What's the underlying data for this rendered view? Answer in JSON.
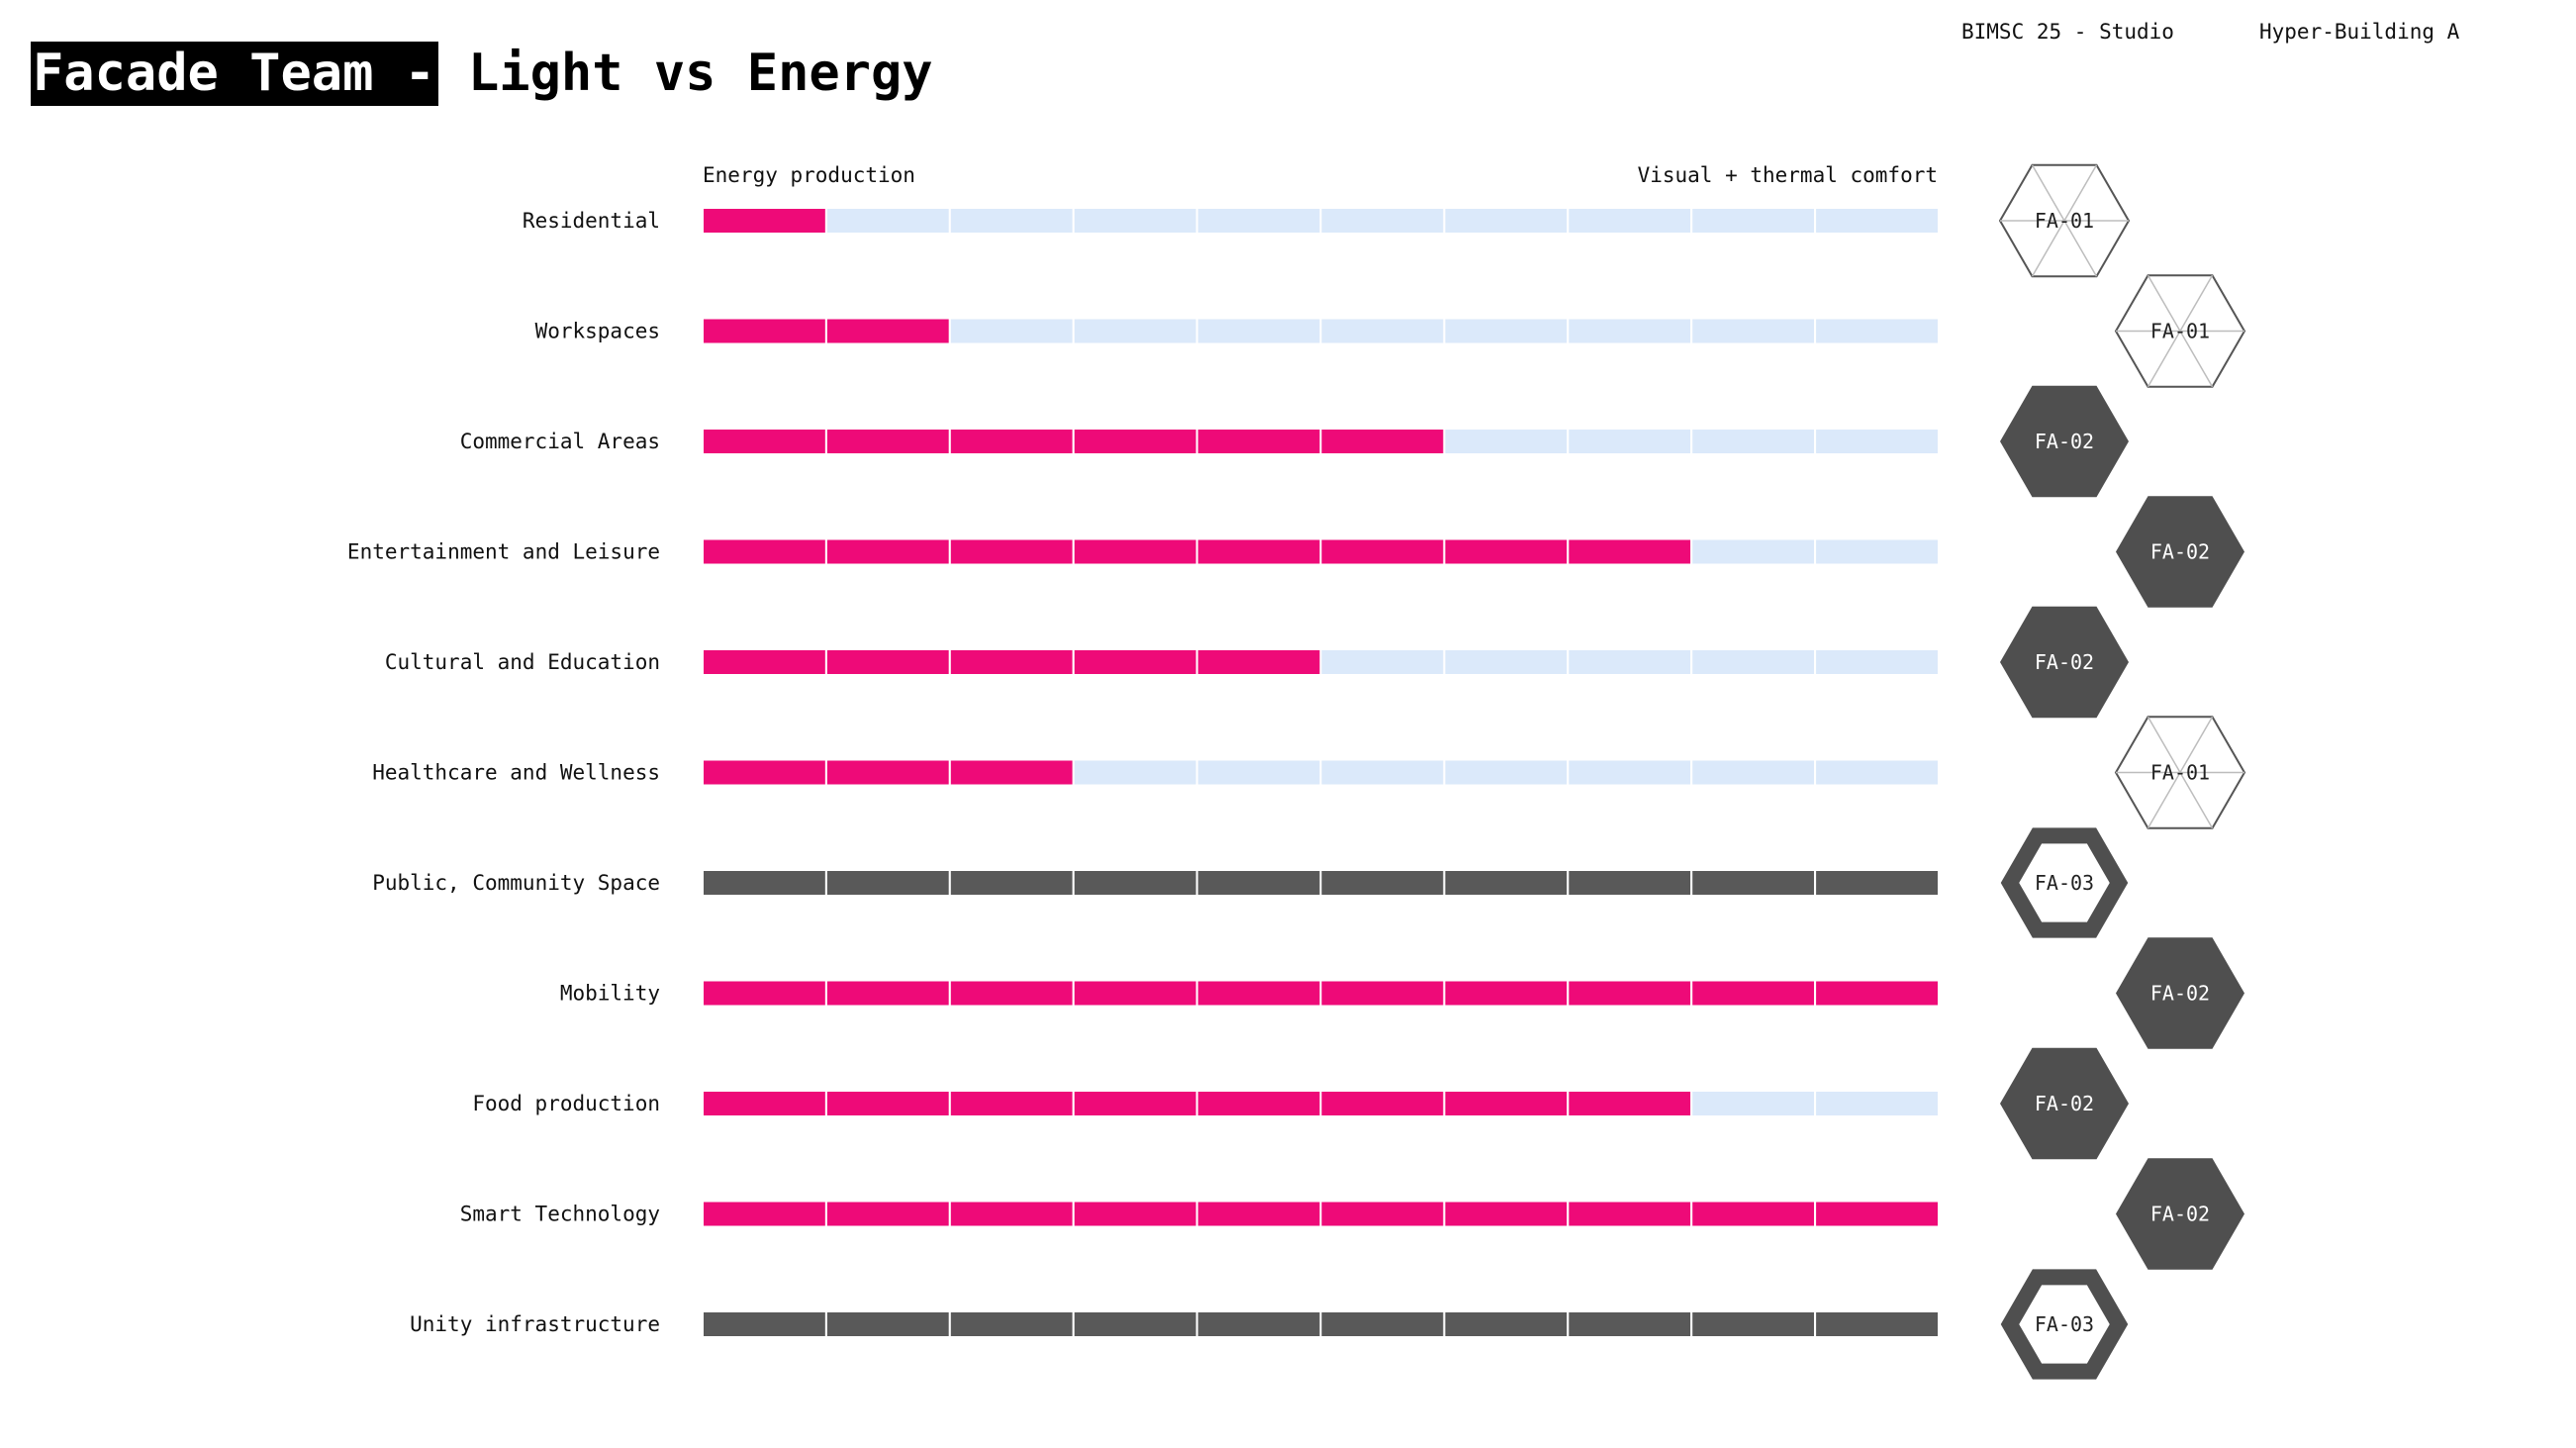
{
  "header": {
    "title_dark": "Facade Team -",
    "title_light": "Light vs Energy",
    "course": "BIMSC 25 - Studio",
    "project": "Hyper-Building A"
  },
  "colors": {
    "energy": "#ee0a78",
    "comfort": "#dbe9fa",
    "neutral": "#595959",
    "hex_dark": "#4f4f4f",
    "hex_outline": "#555555"
  },
  "chart_data": {
    "type": "bar",
    "orientation": "horizontal",
    "stacked": true,
    "scale_left_label": "Energy production",
    "scale_right_label": "Visual + thermal comfort",
    "segments_total": 10,
    "xlim": [
      0,
      10
    ],
    "categories": [
      "Residential",
      "Workspaces",
      "Commercial Areas",
      "Entertainment and Leisure",
      "Cultural and Education",
      "Healthcare and Wellness",
      "Public, Community Space",
      "Mobility",
      "Food production",
      "Smart Technology",
      "Unity infrastructure"
    ],
    "values": [
      1,
      2,
      6,
      8,
      5,
      3,
      10,
      10,
      8,
      10,
      10
    ],
    "bar_style": [
      "energy",
      "energy",
      "energy",
      "energy",
      "energy",
      "energy",
      "neutral",
      "energy",
      "energy",
      "energy",
      "neutral"
    ],
    "facade_types": [
      "FA-01",
      "FA-01",
      "FA-02",
      "FA-02",
      "FA-02",
      "FA-01",
      "FA-03",
      "FA-02",
      "FA-02",
      "FA-02",
      "FA-03"
    ],
    "hex_style": [
      "outline",
      "outline",
      "filled",
      "filled",
      "filled",
      "outline",
      "ring",
      "filled",
      "filled",
      "filled",
      "ring"
    ],
    "hex_column": [
      "left",
      "right",
      "left",
      "right",
      "left",
      "right",
      "left",
      "right",
      "left",
      "right",
      "left"
    ]
  }
}
